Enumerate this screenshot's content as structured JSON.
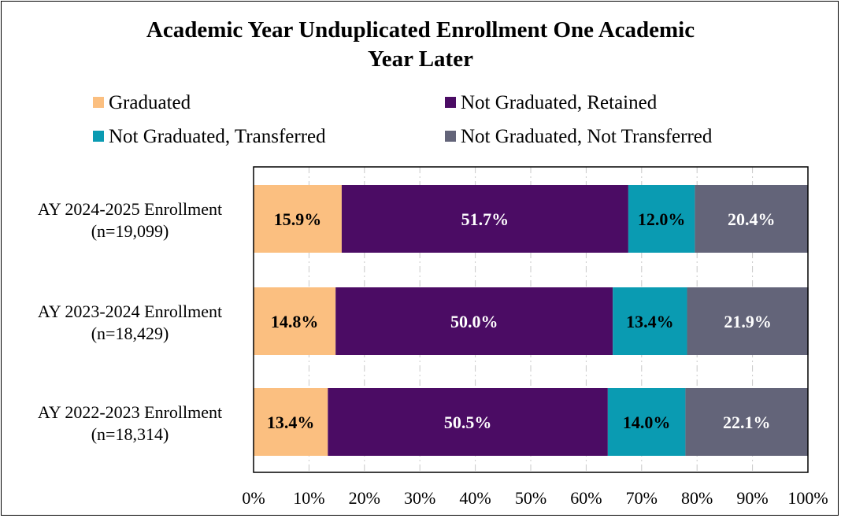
{
  "chart_data": {
    "type": "bar",
    "orientation": "horizontal",
    "stacked": true,
    "title": "Academic Year Unduplicated Enrollment One Academic Year Later",
    "title_lines": [
      "Academic Year Unduplicated Enrollment One Academic",
      "Year Later"
    ],
    "categories": [
      {
        "line1": "AY 2024-2025 Enrollment",
        "line2": "(n=19,099)"
      },
      {
        "line1": "AY 2023-2024 Enrollment",
        "line2": "(n=18,429)"
      },
      {
        "line1": "AY 2022-2023 Enrollment",
        "line2": "(n=18,314)"
      }
    ],
    "series": [
      {
        "name": "Graduated",
        "color": "#FBBF80",
        "label_color": "#000000",
        "values": [
          15.9,
          14.8,
          13.4
        ]
      },
      {
        "name": "Not Graduated, Retained",
        "color": "#4B0C64",
        "label_color": "#FFFFFF",
        "values": [
          51.7,
          50.0,
          50.5
        ]
      },
      {
        "name": "Not Graduated, Transferred",
        "color": "#0A9BB2",
        "label_color": "#000000",
        "values": [
          12.0,
          13.4,
          14.0
        ]
      },
      {
        "name": "Not Graduated, Not Transferred",
        "color": "#636479",
        "label_color": "#FFFFFF",
        "values": [
          20.4,
          21.9,
          22.1
        ]
      }
    ],
    "data_labels": [
      [
        "15.9%",
        "14.8%",
        "13.4%"
      ],
      [
        "51.7%",
        "50.0%",
        "50.5%"
      ],
      [
        "12.0%",
        "13.4%",
        "14.0%"
      ],
      [
        "20.4%",
        "21.9%",
        "22.1%"
      ]
    ],
    "xlim": [
      0,
      100
    ],
    "xticks": [
      "0%",
      "10%",
      "20%",
      "30%",
      "40%",
      "50%",
      "60%",
      "70%",
      "80%",
      "90%",
      "100%"
    ],
    "grid": "vertical dashed",
    "legend_position": "top"
  }
}
